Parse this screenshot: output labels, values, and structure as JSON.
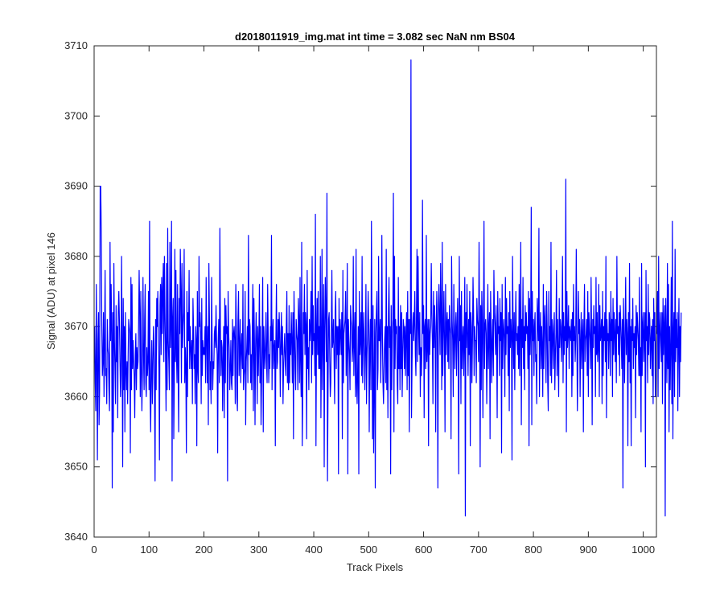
{
  "chart_data": {
    "type": "line",
    "title": "d2018011919_img.mat int time = 3.082 sec  NaN nm BS04",
    "xlabel": "Track Pixels",
    "ylabel": "Signal (ADU) at pixel 146",
    "xlim": [
      0,
      1024
    ],
    "ylim": [
      3640,
      3710
    ],
    "xticks": [
      0,
      100,
      200,
      300,
      400,
      500,
      600,
      700,
      800,
      900,
      1000
    ],
    "yticks": [
      3640,
      3650,
      3660,
      3670,
      3680,
      3690,
      3700,
      3710
    ],
    "grid": false,
    "box": true,
    "series": [
      {
        "color": "#0000ff",
        "x_start": 1,
        "x_step": 1,
        "y": [
          3670,
          3662,
          3658,
          3676,
          3665,
          3651,
          3668,
          3672,
          3656,
          3661,
          3690,
          3690,
          3684,
          3670,
          3663,
          3665,
          3672,
          3660,
          3667,
          3678,
          3663,
          3664,
          3659,
          3671,
          3667,
          3666,
          3661,
          3658,
          3682,
          3668,
          3676,
          3669,
          3647,
          3672,
          3655,
          3679,
          3668,
          3664,
          3659,
          3673,
          3665,
          3670,
          3657,
          3672,
          3675,
          3671,
          3666,
          3660,
          3663,
          3680,
          3668,
          3650,
          3674,
          3661,
          3670,
          3655,
          3672,
          3664,
          3661,
          3665,
          3659,
          3666,
          3671,
          3670,
          3669,
          3652,
          3677,
          3661,
          3676,
          3664,
          3668,
          3665,
          3663,
          3657,
          3666,
          3669,
          3661,
          3667,
          3664,
          3665,
          3670,
          3678,
          3672,
          3660,
          3675,
          3664,
          3658,
          3664,
          3677,
          3666,
          3661,
          3671,
          3676,
          3662,
          3660,
          3667,
          3663,
          3665,
          3675,
          3661,
          3685,
          3660,
          3655,
          3664,
          3668,
          3659,
          3664,
          3670,
          3667,
          3661,
          3648,
          3671,
          3661,
          3674,
          3670,
          3675,
          3668,
          3664,
          3651,
          3673,
          3676,
          3666,
          3677,
          3669,
          3675,
          3679,
          3665,
          3680,
          3672,
          3666,
          3658,
          3679,
          3661,
          3684,
          3668,
          3665,
          3661,
          3682,
          3667,
          3671,
          3685,
          3648,
          3671,
          3674,
          3654,
          3662,
          3681,
          3665,
          3678,
          3666,
          3662,
          3676,
          3664,
          3655,
          3674,
          3669,
          3681,
          3675,
          3662,
          3679,
          3667,
          3670,
          3672,
          3681,
          3662,
          3667,
          3664,
          3652,
          3675,
          3660,
          3672,
          3668,
          3678,
          3664,
          3670,
          3667,
          3664,
          3668,
          3659,
          3674,
          3670,
          3664,
          3666,
          3659,
          3670,
          3668,
          3653,
          3675,
          3664,
          3662,
          3680,
          3670,
          3672,
          3669,
          3659,
          3674,
          3663,
          3668,
          3666,
          3667,
          3666,
          3670,
          3662,
          3677,
          3668,
          3662,
          3670,
          3656,
          3679,
          3671,
          3661,
          3665,
          3659,
          3677,
          3667,
          3661,
          3665,
          3664,
          3669,
          3670,
          3667,
          3673,
          3668,
          3666,
          3652,
          3668,
          3671,
          3662,
          3684,
          3670,
          3663,
          3668,
          3667,
          3658,
          3665,
          3670,
          3657,
          3674,
          3662,
          3673,
          3669,
          3670,
          3648,
          3675,
          3669,
          3667,
          3661,
          3664,
          3668,
          3662,
          3661,
          3671,
          3663,
          3669,
          3670,
          3668,
          3659,
          3676,
          3670,
          3660,
          3658,
          3671,
          3675,
          3663,
          3667,
          3671,
          3662,
          3667,
          3669,
          3664,
          3676,
          3661,
          3663,
          3664,
          3675,
          3656,
          3665,
          3667,
          3670,
          3662,
          3683,
          3666,
          3671,
          3670,
          3662,
          3666,
          3661,
          3669,
          3676,
          3658,
          3674,
          3668,
          3656,
          3667,
          3672,
          3668,
          3659,
          3670,
          3663,
          3668,
          3676,
          3662,
          3670,
          3656,
          3662,
          3668,
          3677,
          3655,
          3670,
          3667,
          3664,
          3667,
          3672,
          3665,
          3662,
          3676,
          3669,
          3662,
          3666,
          3664,
          3670,
          3668,
          3683,
          3661,
          3669,
          3671,
          3664,
          3667,
          3668,
          3653,
          3668,
          3676,
          3664,
          3665,
          3671,
          3667,
          3672,
          3669,
          3660,
          3667,
          3672,
          3666,
          3670,
          3659,
          3664,
          3667,
          3669,
          3665,
          3663,
          3670,
          3675,
          3662,
          3669,
          3661,
          3673,
          3662,
          3669,
          3666,
          3672,
          3668,
          3662,
          3672,
          3654,
          3675,
          3669,
          3664,
          3661,
          3671,
          3669,
          3668,
          3661,
          3674,
          3671,
          3662,
          3677,
          3665,
          3660,
          3682,
          3653,
          3661,
          3672,
          3669,
          3676,
          3666,
          3672,
          3670,
          3654,
          3678,
          3664,
          3667,
          3661,
          3671,
          3668,
          3670,
          3675,
          3662,
          3680,
          3666,
          3673,
          3668,
          3669,
          3663,
          3686,
          3653,
          3669,
          3674,
          3666,
          3675,
          3664,
          3670,
          3664,
          3680,
          3657,
          3667,
          3681,
          3661,
          3669,
          3676,
          3650,
          3670,
          3677,
          3671,
          3665,
          3689,
          3648,
          3661,
          3671,
          3672,
          3666,
          3660,
          3662,
          3670,
          3678,
          3667,
          3668,
          3671,
          3665,
          3659,
          3672,
          3675,
          3664,
          3670,
          3666,
          3670,
          3649,
          3674,
          3666,
          3671,
          3669,
          3666,
          3672,
          3654,
          3678,
          3662,
          3669,
          3670,
          3671,
          3675,
          3663,
          3668,
          3679,
          3649,
          3671,
          3668,
          3666,
          3661,
          3673,
          3671,
          3670,
          3665,
          3667,
          3680,
          3663,
          3668,
          3672,
          3660,
          3681,
          3662,
          3659,
          3664,
          3670,
          3649,
          3675,
          3666,
          3668,
          3672,
          3663,
          3680,
          3662,
          3668,
          3672,
          3667,
          3661,
          3667,
          3676,
          3659,
          3666,
          3669,
          3675,
          3670,
          3655,
          3667,
          3671,
          3661,
          3685,
          3670,
          3654,
          3673,
          3652,
          3662,
          3671,
          3647,
          3669,
          3672,
          3675,
          3661,
          3664,
          3680,
          3668,
          3668,
          3671,
          3662,
          3669,
          3683,
          3669,
          3662,
          3659,
          3664,
          3668,
          3670,
          3662,
          3681,
          3661,
          3670,
          3657,
          3672,
          3677,
          3667,
          3670,
          3649,
          3673,
          3661,
          3669,
          3671,
          3689,
          3655,
          3680,
          3664,
          3671,
          3669,
          3670,
          3662,
          3659,
          3677,
          3664,
          3670,
          3661,
          3673,
          3664,
          3672,
          3660,
          3666,
          3671,
          3670,
          3664,
          3670,
          3663,
          3669,
          3672,
          3661,
          3675,
          3663,
          3671,
          3655,
          3671,
          3669,
          3708,
          3657,
          3665,
          3670,
          3672,
          3668,
          3671,
          3675,
          3666,
          3663,
          3672,
          3681,
          3665,
          3680,
          3670,
          3666,
          3672,
          3660,
          3667,
          3663,
          3667,
          3688,
          3669,
          3673,
          3657,
          3670,
          3671,
          3664,
          3683,
          3665,
          3668,
          3671,
          3653,
          3671,
          3666,
          3669,
          3670,
          3679,
          3672,
          3668,
          3659,
          3675,
          3667,
          3673,
          3669,
          3655,
          3670,
          3675,
          3668,
          3647,
          3673,
          3676,
          3671,
          3666,
          3679,
          3672,
          3661,
          3682,
          3663,
          3669,
          3675,
          3668,
          3655,
          3676,
          3666,
          3670,
          3672,
          3665,
          3671,
          3664,
          3673,
          3670,
          3669,
          3654,
          3680,
          3671,
          3668,
          3660,
          3676,
          3669,
          3664,
          3670,
          3672,
          3663,
          3670,
          3674,
          3665,
          3649,
          3680,
          3668,
          3673,
          3659,
          3675,
          3664,
          3668,
          3670,
          3663,
          3669,
          3677,
          3643,
          3672,
          3667,
          3676,
          3669,
          3663,
          3671,
          3666,
          3675,
          3653,
          3672,
          3670,
          3662,
          3668,
          3677,
          3672,
          3663,
          3670,
          3668,
          3668,
          3662,
          3674,
          3671,
          3670,
          3665,
          3682,
          3669,
          3650,
          3673,
          3661,
          3675,
          3671,
          3657,
          3670,
          3685,
          3664,
          3670,
          3671,
          3669,
          3659,
          3667,
          3676,
          3664,
          3670,
          3672,
          3654,
          3675,
          3670,
          3662,
          3668,
          3671,
          3663,
          3678,
          3672,
          3670,
          3666,
          3673,
          3668,
          3657,
          3675,
          3669,
          3670,
          3663,
          3674,
          3668,
          3672,
          3652,
          3676,
          3664,
          3669,
          3671,
          3668,
          3660,
          3677,
          3666,
          3674,
          3669,
          3670,
          3663,
          3672,
          3658,
          3675,
          3667,
          3671,
          3669,
          3651,
          3680,
          3670,
          3664,
          3672,
          3661,
          3669,
          3675,
          3668,
          3669,
          3666,
          3670,
          3664,
          3676,
          3663,
          3670,
          3682,
          3656,
          3671,
          3667,
          3677,
          3664,
          3670,
          3661,
          3673,
          3668,
          3672,
          3669,
          3670,
          3664,
          3675,
          3653,
          3674,
          3666,
          3670,
          3687,
          3656,
          3675,
          3668,
          3671,
          3663,
          3670,
          3672,
          3665,
          3666,
          3659,
          3674,
          3671,
          3668,
          3684,
          3660,
          3669,
          3672,
          3664,
          3670,
          3667,
          3660,
          3676,
          3664,
          3671,
          3673,
          3668,
          3662,
          3675,
          3670,
          3662,
          3658,
          3675,
          3668,
          3670,
          3663,
          3682,
          3662,
          3671,
          3669,
          3664,
          3670,
          3672,
          3661,
          3666,
          3669,
          3678,
          3663,
          3671,
          3666,
          3660,
          3674,
          3667,
          3671,
          3670,
          3665,
          3669,
          3680,
          3662,
          3672,
          3666,
          3670,
          3668,
          3691,
          3655,
          3675,
          3667,
          3669,
          3673,
          3664,
          3670,
          3669,
          3668,
          3671,
          3660,
          3672,
          3663,
          3676,
          3668,
          3670,
          3665,
          3668,
          3681,
          3670,
          3658,
          3664,
          3675,
          3669,
          3671,
          3660,
          3668,
          3672,
          3664,
          3669,
          3671,
          3655,
          3670,
          3676,
          3665,
          3668,
          3669,
          3671,
          3663,
          3675,
          3660,
          3672,
          3670,
          3668,
          3664,
          3677,
          3669,
          3656,
          3671,
          3667,
          3673,
          3669,
          3670,
          3660,
          3677,
          3666,
          3672,
          3665,
          3667,
          3676,
          3660,
          3673,
          3668,
          3669,
          3671,
          3659,
          3675,
          3663,
          3670,
          3668,
          3672,
          3665,
          3680,
          3657,
          3671,
          3668,
          3669,
          3664,
          3672,
          3670,
          3663,
          3675,
          3668,
          3671,
          3660,
          3674,
          3666,
          3672,
          3669,
          3665,
          3671,
          3662,
          3680,
          3669,
          3670,
          3666,
          3672,
          3663,
          3673,
          3671,
          3668,
          3664,
          3671,
          3647,
          3674,
          3668,
          3662,
          3670,
          3677,
          3666,
          3671,
          3669,
          3653,
          3672,
          3665,
          3679,
          3662,
          3670,
          3653,
          3671,
          3668,
          3674,
          3664,
          3669,
          3667,
          3670,
          3657,
          3673,
          3666,
          3672,
          3670,
          3668,
          3663,
          3677,
          3663,
          3667,
          3655,
          3679,
          3663,
          3670,
          3672,
          3665,
          3669,
          3672,
          3650,
          3678,
          3668,
          3670,
          3662,
          3676,
          3666,
          3672,
          3671,
          3664,
          3668,
          3670,
          3663,
          3671,
          3659,
          3674,
          3668,
          3672,
          3660,
          3667,
          3670,
          3669,
          3675,
          3660,
          3680,
          3664,
          3669,
          3672,
          3668,
          3665,
          3672,
          3659,
          3674,
          3666,
          3670,
          3673,
          3643,
          3674,
          3668,
          3662,
          3679,
          3664,
          3676,
          3655,
          3670,
          3661,
          3667,
          3677,
          3659,
          3685,
          3654,
          3669,
          3672,
          3660,
          3681,
          3665,
          3671,
          3667,
          3672,
          3658,
          3668,
          3674,
          3660,
          3670,
          3665,
          3672
        ]
      }
    ]
  }
}
